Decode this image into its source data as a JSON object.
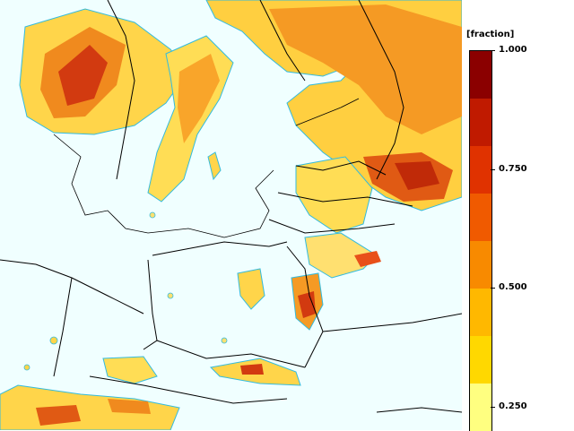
{
  "legend": {
    "title": "[fraction]",
    "ticks": [
      {
        "label": "1.000",
        "value": 1.0
      },
      {
        "label": "0.750",
        "value": 0.75
      },
      {
        "label": "0.500",
        "value": 0.5
      },
      {
        "label": "0.250",
        "value": 0.25
      }
    ],
    "colors": [
      "#8b0000",
      "#c01a00",
      "#e03200",
      "#f05a00",
      "#f88a00",
      "#ffb800",
      "#ffd800",
      "#ffff80"
    ]
  },
  "map": {
    "background": "#f0ffff",
    "contour_color": "#33bbdd",
    "border_color": "#000000"
  }
}
